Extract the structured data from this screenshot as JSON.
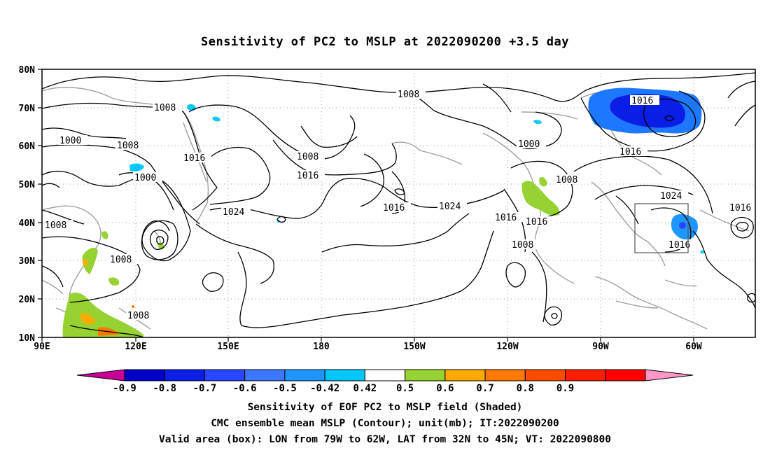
{
  "title": "Sensitivity of PC2 to MSLP at 2022090200 +3.5 day",
  "map": {
    "lat_ticks": [
      "80N",
      "70N",
      "60N",
      "50N",
      "40N",
      "30N",
      "20N",
      "10N"
    ],
    "lon_ticks": [
      "90E",
      "120E",
      "150E",
      "180",
      "150W",
      "120W",
      "90W",
      "60W"
    ],
    "contour_labels": [
      "1008",
      "1016",
      "1024",
      "1000"
    ],
    "colors": {
      "contour": "#000000",
      "coast": "#a0a0a0",
      "grid": "#9a9a9a",
      "box": "#555555"
    }
  },
  "colorbar": {
    "labels": [
      "-0.9",
      "-0.8",
      "-0.7",
      "-0.6",
      "-0.5",
      "-0.42",
      "0.42",
      "0.5",
      "0.6",
      "0.7",
      "0.8",
      "0.9"
    ],
    "colors": [
      "#c80096",
      "#0000c8",
      "#0a1ee6",
      "#2846ff",
      "#3c78ff",
      "#1e96ff",
      "#00c8ff",
      "#ffffff",
      "#96d232",
      "#ffaa00",
      "#ff7800",
      "#ff4b00",
      "#ff1e00",
      "#ff0000",
      "#ff96c8"
    ]
  },
  "captions": {
    "line1": "Sensitivity of EOF PC2 to MSLP field (Shaded)",
    "line2": "CMC ensemble mean MSLP (Contour); unit(mb); IT:2022090200",
    "line3": "Valid area (box): LON from 79W to 62W, LAT from 32N to 45N; VT: 2022090800"
  }
}
